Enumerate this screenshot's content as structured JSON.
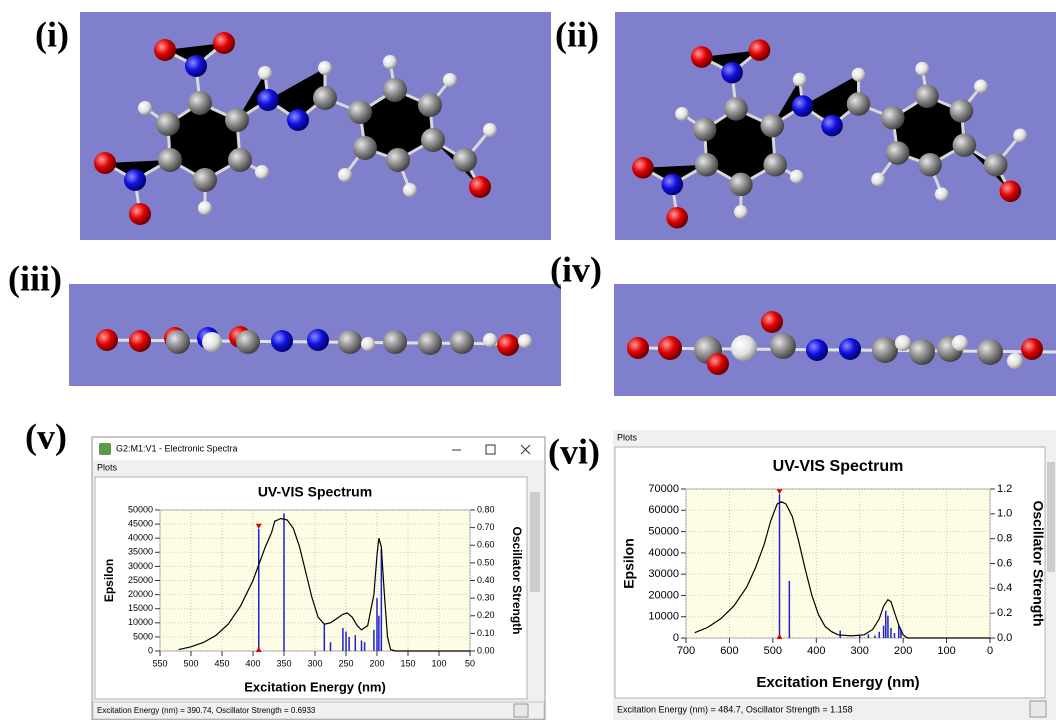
{
  "labels": [
    "(i)",
    "(ii)",
    "(iii)",
    "(iv)",
    "(v)",
    "(vi)"
  ],
  "window": {
    "title": "G2:M1:V1 - Electronic Spectra",
    "menu": "Plots"
  },
  "window2": {
    "menu": "Plots"
  },
  "chart_data": [
    {
      "type": "spectrum",
      "title": "UV-VIS Spectrum",
      "x_label": "Excitation Energy (nm)",
      "y_label": "Epsilon",
      "y2_label": "Oscillator Strength",
      "xlim": [
        550,
        50
      ],
      "xticks": [
        550,
        500,
        450,
        400,
        350,
        300,
        250,
        200,
        150,
        100,
        50
      ],
      "ylim": [
        0,
        50000
      ],
      "yticks": [
        0,
        5000,
        10000,
        15000,
        20000,
        25000,
        30000,
        35000,
        40000,
        45000,
        50000
      ],
      "y2lim": [
        0,
        0.8
      ],
      "y2ticks": [
        {
          "value": 0,
          "label": "0.00"
        },
        {
          "value": 0.1,
          "label": "0.10"
        },
        {
          "value": 0.2,
          "label": "0.20"
        },
        {
          "value": 0.3,
          "label": "0.30"
        },
        {
          "value": 0.4,
          "label": "0.40"
        },
        {
          "value": 0.5,
          "label": "0.50"
        },
        {
          "value": 0.6,
          "label": "0.60"
        },
        {
          "value": 0.7,
          "label": "0.70"
        },
        {
          "value": 0.8,
          "label": "0.80"
        }
      ],
      "grid": true,
      "curve": {
        "color": "#000000",
        "x": [
          520,
          500,
          480,
          460,
          440,
          420,
          400,
          390,
          380,
          370,
          365,
          355,
          345,
          335,
          325,
          315,
          305,
          295,
          285,
          275,
          265,
          255,
          248,
          240,
          232,
          225,
          215,
          205,
          200,
          197,
          193,
          188,
          183,
          178,
          170,
          150,
          100,
          50
        ],
        "values": [
          500,
          1500,
          3000,
          5500,
          9500,
          16000,
          25000,
          31000,
          37000,
          42000,
          46000,
          47000,
          46500,
          43500,
          37000,
          28000,
          19000,
          12000,
          9500,
          10000,
          11500,
          13000,
          13500,
          12000,
          9000,
          7500,
          9000,
          20000,
          34000,
          40000,
          37000,
          20000,
          5000,
          500,
          0,
          0,
          0,
          0
        ]
      },
      "sticks": {
        "color": "#1f1fd0",
        "axis": "y2",
        "x": [
          390.74,
          350,
          285,
          275,
          255,
          250,
          245,
          235,
          225,
          220,
          205,
          200,
          197,
          193
        ],
        "values": [
          0.6933,
          0.78,
          0.15,
          0.05,
          0.13,
          0.11,
          0.08,
          0.09,
          0.06,
          0.05,
          0.12,
          0.3,
          0.2,
          0.58
        ]
      },
      "status": "Excitation Energy (nm) = 390.74, Oscillator Strength = 0.6933"
    },
    {
      "type": "spectrum",
      "title": "UV-VIS Spectrum",
      "x_label": "Excitation Energy (nm)",
      "y_label": "Epsilon",
      "y2_label": "Oscillator Strength",
      "xlim": [
        700,
        0
      ],
      "xticks": [
        700,
        600,
        500,
        400,
        300,
        200,
        100,
        0
      ],
      "ylim": [
        0,
        70000
      ],
      "yticks": [
        0,
        10000,
        20000,
        30000,
        40000,
        50000,
        60000,
        70000
      ],
      "y2lim": [
        0,
        1.2
      ],
      "y2ticks": [
        {
          "value": 0,
          "label": "0.0"
        },
        0.2,
        0.4,
        0.6,
        0.8,
        {
          "value": 1,
          "label": "1.0"
        },
        1.2
      ],
      "grid": true,
      "curve": {
        "color": "#000000",
        "x": [
          680,
          650,
          620,
          590,
          560,
          540,
          520,
          505,
          490,
          480,
          470,
          455,
          440,
          425,
          410,
          395,
          380,
          365,
          350,
          320,
          290,
          270,
          255,
          245,
          235,
          228,
          220,
          210,
          200,
          190,
          150,
          100,
          50,
          0
        ],
        "values": [
          2500,
          5000,
          9000,
          15000,
          24000,
          33000,
          44000,
          55000,
          63000,
          64000,
          63000,
          57000,
          45000,
          32000,
          20000,
          11000,
          5500,
          3000,
          1500,
          1000,
          1500,
          4000,
          9000,
          15000,
          18000,
          17000,
          12000,
          6000,
          1500,
          0,
          0,
          0,
          0,
          0
        ]
      },
      "sticks": {
        "color": "#1f1fd0",
        "axis": "y2",
        "x": [
          484.7,
          462,
          345,
          300,
          280,
          265,
          255,
          245,
          240,
          235,
          228,
          220,
          210,
          205
        ],
        "values": [
          1.158,
          0.46,
          0.06,
          0.02,
          0.03,
          0.02,
          0.05,
          0.1,
          0.22,
          0.18,
          0.08,
          0.04,
          0.1,
          0.07
        ]
      },
      "status": "Excitation Energy (nm) = 484.7, Oscillator Strength = 1.158"
    }
  ]
}
